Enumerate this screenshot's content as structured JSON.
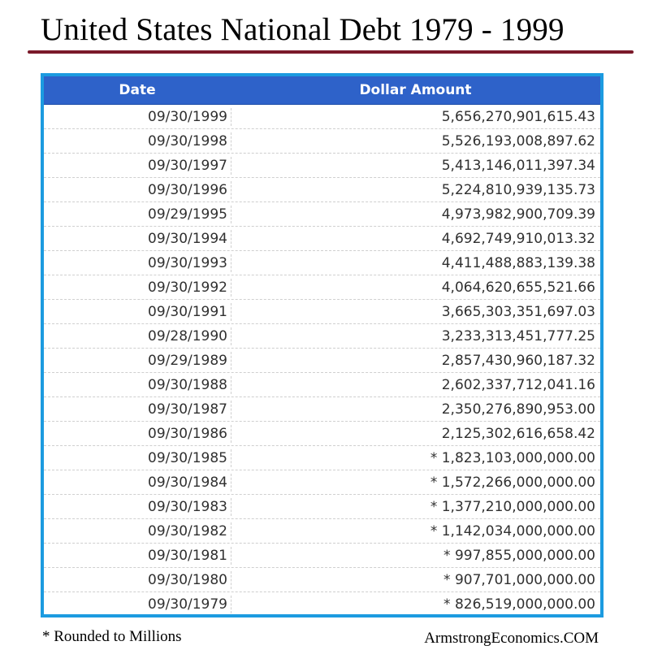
{
  "title": "United States National Debt 1979 - 1999",
  "accent_colors": {
    "rule": "#7a1a2a",
    "frame": "#1c9be0",
    "header": "#2e62c9"
  },
  "table": {
    "headers": [
      "Date",
      "Dollar Amount"
    ],
    "rows": [
      {
        "date": "09/30/1999",
        "amount": "5,656,270,901,615.43"
      },
      {
        "date": "09/30/1998",
        "amount": "5,526,193,008,897.62"
      },
      {
        "date": "09/30/1997",
        "amount": "5,413,146,011,397.34"
      },
      {
        "date": "09/30/1996",
        "amount": "5,224,810,939,135.73"
      },
      {
        "date": "09/29/1995",
        "amount": "4,973,982,900,709.39"
      },
      {
        "date": "09/30/1994",
        "amount": "4,692,749,910,013.32"
      },
      {
        "date": "09/30/1993",
        "amount": "4,411,488,883,139.38"
      },
      {
        "date": "09/30/1992",
        "amount": "4,064,620,655,521.66"
      },
      {
        "date": "09/30/1991",
        "amount": "3,665,303,351,697.03"
      },
      {
        "date": "09/28/1990",
        "amount": "3,233,313,451,777.25"
      },
      {
        "date": "09/29/1989",
        "amount": "2,857,430,960,187.32"
      },
      {
        "date": "09/30/1988",
        "amount": "2,602,337,712,041.16"
      },
      {
        "date": "09/30/1987",
        "amount": "2,350,276,890,953.00"
      },
      {
        "date": "09/30/1986",
        "amount": "2,125,302,616,658.42"
      },
      {
        "date": "09/30/1985",
        "amount": "* 1,823,103,000,000.00"
      },
      {
        "date": "09/30/1984",
        "amount": "* 1,572,266,000,000.00"
      },
      {
        "date": "09/30/1983",
        "amount": "* 1,377,210,000,000.00"
      },
      {
        "date": "09/30/1982",
        "amount": "* 1,142,034,000,000.00"
      },
      {
        "date": "09/30/1981",
        "amount": "* 997,855,000,000.00"
      },
      {
        "date": "09/30/1980",
        "amount": "* 907,701,000,000.00"
      },
      {
        "date": "09/30/1979",
        "amount": "* 826,519,000,000.00"
      }
    ]
  },
  "footnote": "* Rounded to Millions",
  "credit": "ArmstrongEconomics.COM"
}
